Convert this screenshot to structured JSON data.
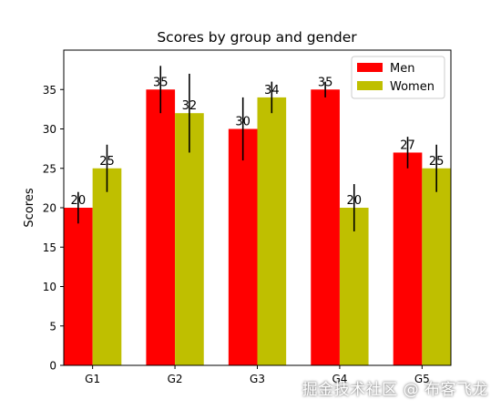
{
  "chart_data": {
    "type": "bar",
    "title": "Scores by group and gender",
    "xlabel": "",
    "ylabel": "Scores",
    "categories": [
      "G1",
      "G2",
      "G3",
      "G4",
      "G5"
    ],
    "series": [
      {
        "name": "Men",
        "color": "#ff0000",
        "values": [
          20,
          35,
          30,
          35,
          27
        ],
        "errors": [
          2,
          3,
          4,
          1,
          2
        ]
      },
      {
        "name": "Women",
        "color": "#bfbf00",
        "values": [
          25,
          32,
          34,
          20,
          25
        ],
        "errors": [
          3,
          5,
          2,
          3,
          3
        ]
      }
    ],
    "ylim": [
      0,
      40
    ],
    "yticks": [
      0,
      5,
      10,
      15,
      20,
      25,
      30,
      35
    ],
    "grid": false,
    "legend": "top-right",
    "data_labels": true
  },
  "watermark": "掘金技术社区 @ 布客飞龙"
}
